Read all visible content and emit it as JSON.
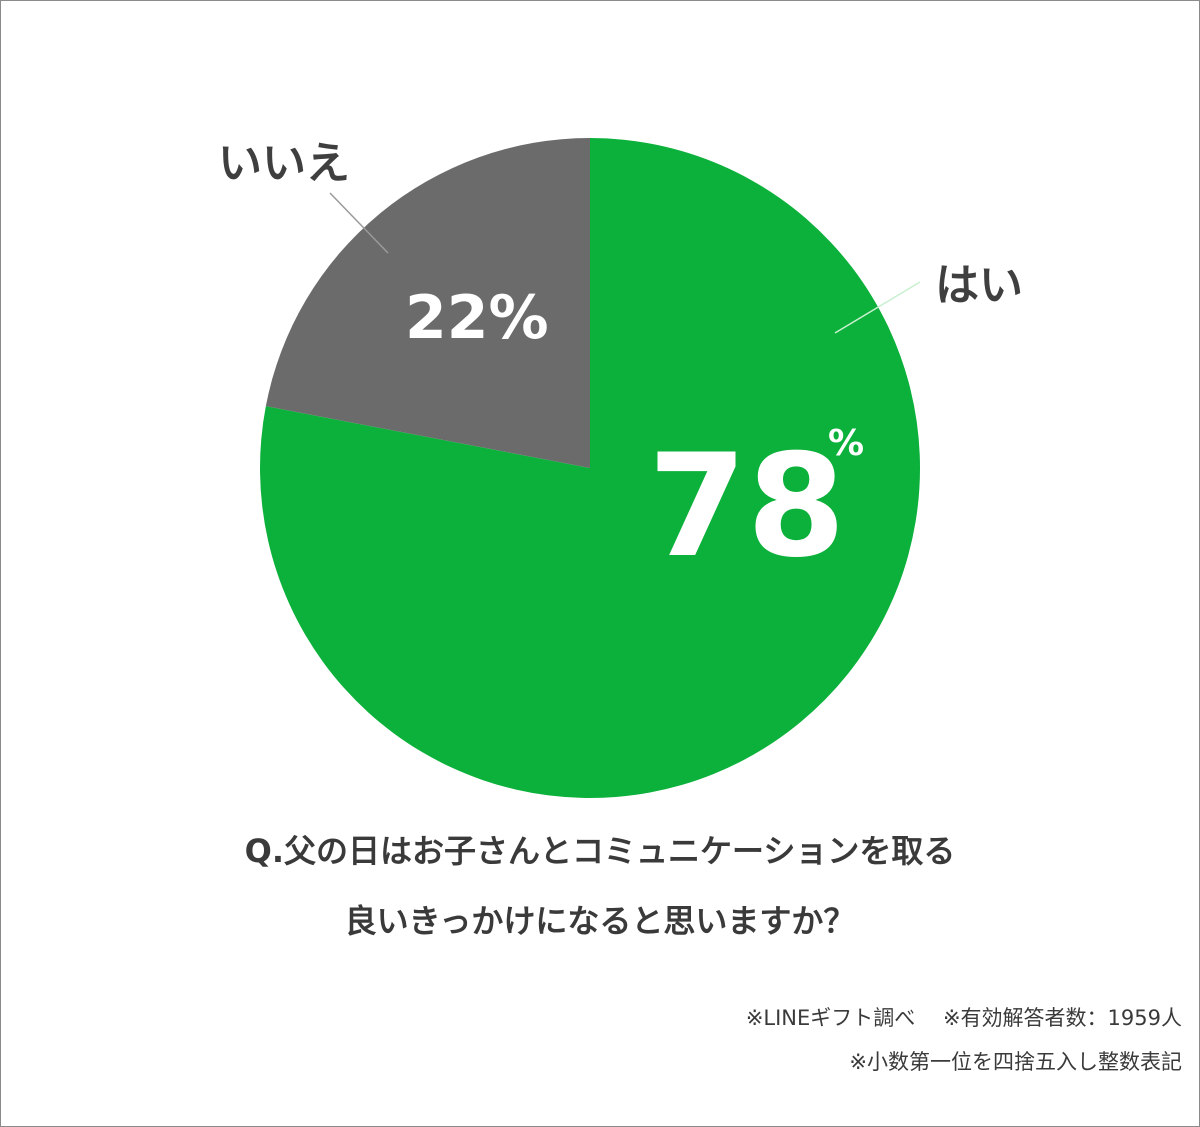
{
  "chart_data": {
    "type": "pie",
    "slices": [
      {
        "label": "はい",
        "value": 78,
        "value_text": "78",
        "pct_symbol": "%",
        "color": "#0bb13a"
      },
      {
        "label": "いいえ",
        "value": 22,
        "value_text": "22%",
        "color": "#6b6b6b"
      }
    ],
    "start": "12 o'clock",
    "direction": "clockwise",
    "legend": "none"
  },
  "question": {
    "line1": "Q.父の日はお子さんとコミュニケーションを取る",
    "line2": "良いきっかけになると思いますか？"
  },
  "notes": {
    "line1": "※LINEギフト調べ　 ※有効解答者数：1959人",
    "line2": "※小数第一位を四捨五入し整数表記"
  }
}
